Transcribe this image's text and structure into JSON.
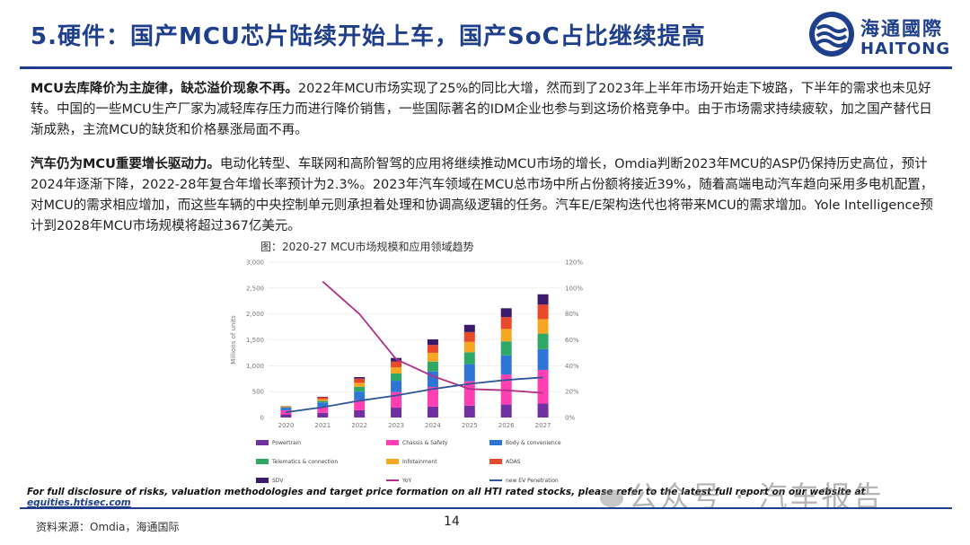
{
  "header": {
    "title": "5.硬件：国产MCU芯片陆续开始上车，国产SoC占比继续提高",
    "logo_cn": "海通國際",
    "logo_en": "HAITONG"
  },
  "body": {
    "p1_bold": "MCU去库降价为主旋律，缺芯溢价现象不再。",
    "p1_text": "2022年MCU市场实现了25%的同比大增，然而到了2023年上半年市场开始走下坡路，下半年的需求也未见好转。中国的一些MCU生产厂家为减轻库存压力而进行降价销售，一些国际著名的IDM企业也参与到这场价格竞争中。由于市场需求持续疲软，加之国产替代日渐成熟，主流MCU的缺货和价格暴涨局面不再。",
    "p2_bold": "汽车仍为MCU重要增长驱动力。",
    "p2_text": "电动化转型、车联网和高阶智驾的应用将继续推动MCU市场的增长，Omdia判断2023年MCU的ASP仍保持历史高位，预计2024年逐渐下降，2022-28年复合年增长率预计为2.3%。2023年汽车领域在MCU总市场中所占份额将接近39%，随着高端电动汽车趋向采用多电机配置，对MCU的需求相应增加，而这些车辆的中央控制单元则承担着处理和协调高级逻辑的任务。汽车E/E架构迭代也将带来MCU的需求增加。Yole Intelligence预计到2028年MCU市场规模将超过367亿美元。"
  },
  "figure": {
    "title": "图：2020-27 MCU市场规模和应用领域趋势"
  },
  "chart_data": {
    "type": "bar",
    "stacked": true,
    "categories": [
      "2020",
      "2021",
      "2022",
      "2023",
      "2024",
      "2025",
      "2026",
      "2027"
    ],
    "ylabel": "Millions of units",
    "ylim": [
      0,
      3000
    ],
    "yticks": [
      "0",
      "500",
      "1,000",
      "1,500",
      "2,000",
      "2,500",
      "3,000"
    ],
    "y2lim": [
      0,
      1.2
    ],
    "y2ticks": [
      "0%",
      "20%",
      "40%",
      "60%",
      "80%",
      "100%",
      "120%"
    ],
    "series": [
      {
        "name": "Powertrain",
        "color": "#7030a0",
        "values": [
          60,
          90,
          140,
          190,
          210,
          230,
          250,
          270
        ]
      },
      {
        "name": "Chassis & Safety",
        "color": "#ff3fb2",
        "values": [
          80,
          120,
          200,
          300,
          380,
          470,
          580,
          650
        ]
      },
      {
        "name": "Body & convenience",
        "color": "#2f75d6",
        "values": [
          50,
          80,
          160,
          220,
          300,
          330,
          370,
          400
        ]
      },
      {
        "name": "Telematics & connection",
        "color": "#2fa866",
        "values": [
          10,
          30,
          90,
          140,
          190,
          230,
          270,
          300
        ]
      },
      {
        "name": "Infotainment",
        "color": "#f5a623",
        "values": [
          10,
          30,
          80,
          120,
          170,
          200,
          240,
          280
        ]
      },
      {
        "name": "ADAS",
        "color": "#e8492a",
        "values": [
          10,
          40,
          80,
          110,
          150,
          190,
          230,
          280
        ]
      },
      {
        "name": "SDV",
        "color": "#3a1a6a",
        "values": [
          0,
          10,
          30,
          70,
          110,
          140,
          170,
          200
        ]
      }
    ],
    "lines": [
      {
        "name": "YoY",
        "color": "#b0308a",
        "axis": "right",
        "values": [
          null,
          1.05,
          0.8,
          0.45,
          0.32,
          0.22,
          0.21,
          0.19
        ]
      },
      {
        "name": "new EV Penetration",
        "color": "#2f5597",
        "axis": "right",
        "values": [
          0.04,
          0.08,
          0.13,
          0.17,
          0.22,
          0.26,
          0.29,
          0.31
        ]
      }
    ]
  },
  "footer": {
    "disclaimer": "For full disclosure of risks, valuation methodologies and target price formation on all HTI rated stocks, please refer to the latest full report on our website at",
    "link": "equities.htisec.com",
    "watermark": "公众号 · 汽车报告",
    "source": "资料来源：Omdia，海通国际",
    "page": "14"
  }
}
